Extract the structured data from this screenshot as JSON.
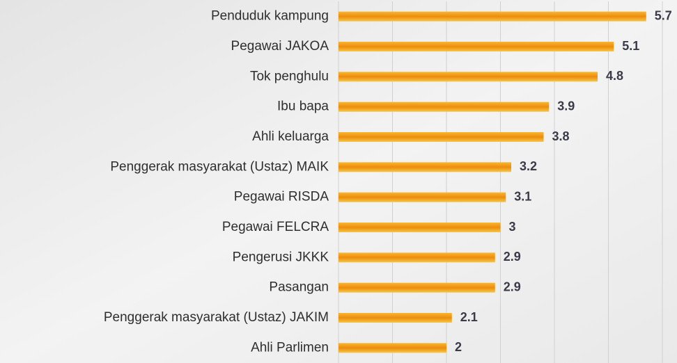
{
  "chart_data": {
    "type": "hbar",
    "categories": [
      "Penduduk kampung",
      "Pegawai JAKOA",
      "Tok penghulu",
      "Ibu bapa",
      "Ahli keluarga",
      "Penggerak masyarakat (Ustaz) MAIK",
      "Pegawai RISDA",
      "Pegawai FELCRA",
      "Pengerusi JKKK",
      "Pasangan",
      "Penggerak masyarakat (Ustaz) JAKIM",
      "Ahli Parlimen"
    ],
    "values": [
      5.7,
      5.1,
      4.8,
      3.9,
      3.8,
      3.2,
      3.1,
      3,
      2.9,
      2.9,
      2.1,
      2
    ],
    "color": "#f29a12",
    "xlim": [
      0,
      6
    ],
    "xticks": [
      0,
      1,
      2,
      3,
      4,
      5,
      6
    ],
    "grid": true
  }
}
